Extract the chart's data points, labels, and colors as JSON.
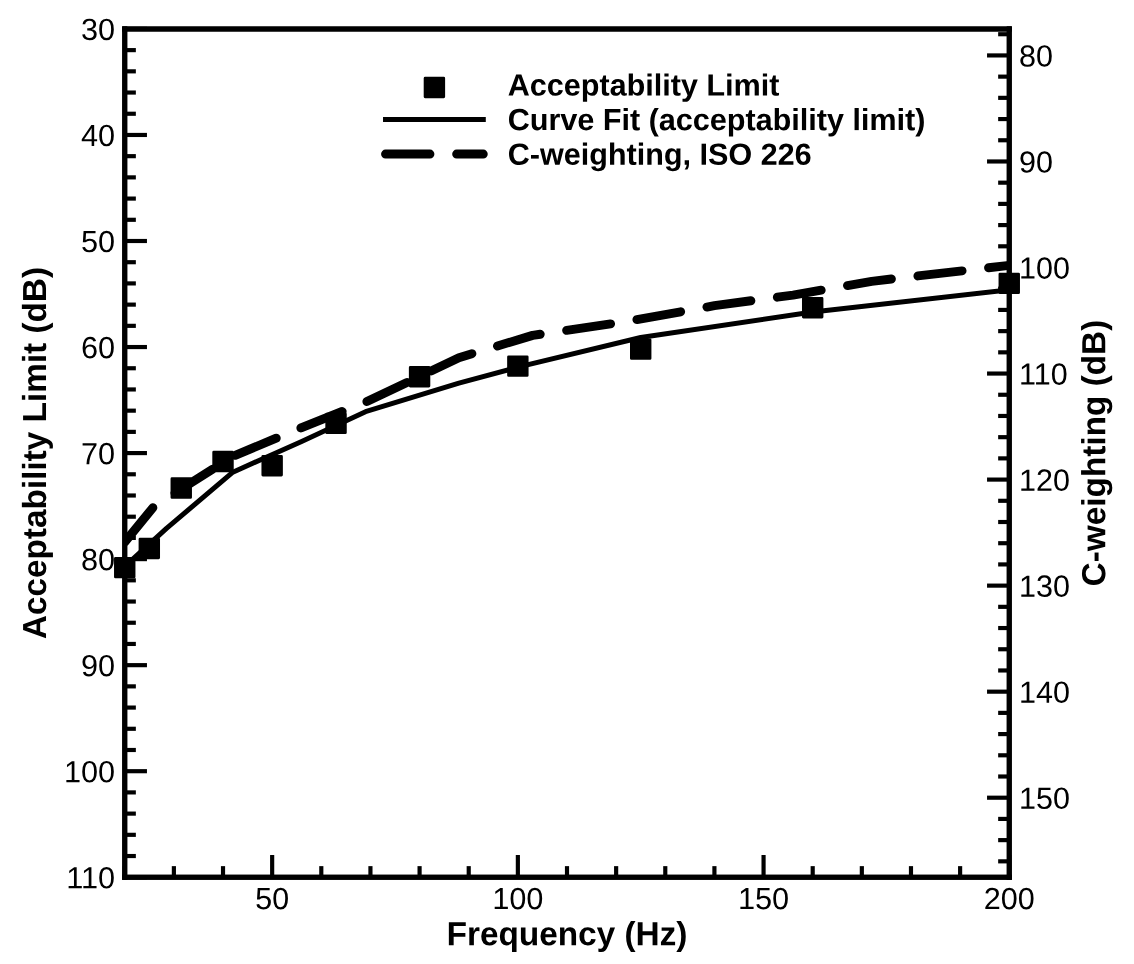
{
  "chart_data": {
    "type": "scatter",
    "xlabel": "Frequency (Hz)",
    "ylabel": "Acceptability Limit (dB)",
    "y2label": "C-weighting (dB)",
    "xlim": [
      20,
      200
    ],
    "xticks": [
      50,
      100,
      150,
      200
    ],
    "ylim": [
      110,
      30
    ],
    "yticks": [
      30,
      40,
      50,
      60,
      70,
      80,
      90,
      100,
      110
    ],
    "y2lim": [
      157.5,
      77.5
    ],
    "y2ticks": [
      80,
      90,
      100,
      110,
      120,
      130,
      140,
      150
    ],
    "legend": "top",
    "grid": false,
    "series": [
      {
        "name": "Acceptability Limit",
        "marker": "square",
        "color": "#000000",
        "x": [
          20,
          25,
          31.5,
          40,
          50,
          63,
          80,
          100,
          125,
          160,
          200
        ],
        "values": [
          80.8,
          79.0,
          73.3,
          70.8,
          71.2,
          67.2,
          62.8,
          61.8,
          60.2,
          56.3,
          54.0
        ]
      },
      {
        "name": "Curve Fit (acceptability limit)",
        "type": "line",
        "line_style": "solid",
        "color": "#000000",
        "x": [
          20,
          28.5,
          42,
          56,
          69,
          88,
          100,
          125,
          160,
          200
        ],
        "values": [
          80.7,
          77.1,
          71.8,
          68.9,
          66.1,
          63.4,
          61.9,
          59.1,
          56.7,
          54.6
        ]
      },
      {
        "name": "C-weighting, ISO 226",
        "type": "line",
        "line_style": "dashed",
        "axis": "y2",
        "color": "#000000",
        "x": [
          20,
          26,
          42,
          56,
          69,
          88,
          103,
          122,
          140,
          156,
          172,
          200
        ],
        "values": [
          125.9,
          122.5,
          117.8,
          115.1,
          112.7,
          108.5,
          106.4,
          105.1,
          103.6,
          102.6,
          101.3,
          99.8
        ]
      }
    ]
  }
}
